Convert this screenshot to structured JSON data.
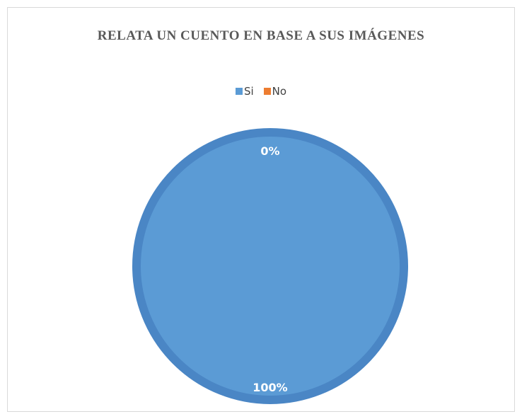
{
  "chart_data": {
    "type": "pie",
    "title": "RELATA UN CUENTO EN BASE A SUS IMÁGENES",
    "categories": [
      "Si",
      "No"
    ],
    "values": [
      100,
      0
    ],
    "data_labels": [
      "100%",
      "0%"
    ],
    "colors": [
      "#5b9bd5",
      "#ed7d31"
    ],
    "legend_position": "top"
  }
}
